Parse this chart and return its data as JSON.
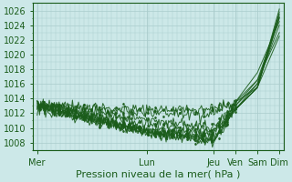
{
  "xlabel": "Pression niveau de la mer( hPa )",
  "bg_color": "#cce8e8",
  "grid_color": "#aacccc",
  "line_color": "#1a5c1a",
  "ylim": [
    1007,
    1027
  ],
  "yticks": [
    1008,
    1010,
    1012,
    1014,
    1016,
    1018,
    1020,
    1022,
    1024,
    1026
  ],
  "day_labels": [
    "Mer",
    "Lun",
    "Jeu",
    "Ven",
    "Sam",
    "Dim"
  ],
  "day_positions": [
    0,
    5,
    8,
    9,
    10,
    11
  ],
  "xlabel_fontsize": 8,
  "tick_fontsize": 7,
  "series": [
    {
      "ctrl_x": [
        0,
        5,
        8,
        9,
        10,
        11
      ],
      "ctrl_y": [
        1013,
        1009.5,
        1008.2,
        1012.5,
        1015.5,
        1026.2
      ]
    },
    {
      "ctrl_x": [
        0,
        5,
        8,
        9,
        10,
        11
      ],
      "ctrl_y": [
        1013,
        1009.5,
        1008.2,
        1012.5,
        1015.5,
        1025.8
      ]
    },
    {
      "ctrl_x": [
        0,
        5,
        8,
        9,
        10,
        11
      ],
      "ctrl_y": [
        1013,
        1009.5,
        1008.2,
        1012.5,
        1016.0,
        1025.5
      ]
    },
    {
      "ctrl_x": [
        0,
        5,
        8,
        9,
        10,
        11
      ],
      "ctrl_y": [
        1013,
        1009.5,
        1008.5,
        1013.0,
        1016.5,
        1025.0
      ]
    },
    {
      "ctrl_x": [
        0,
        5,
        8,
        9,
        10,
        11
      ],
      "ctrl_y": [
        1013,
        1009.5,
        1009.0,
        1013.5,
        1017.5,
        1024.5
      ]
    },
    {
      "ctrl_x": [
        0,
        5,
        8,
        9,
        10,
        11
      ],
      "ctrl_y": [
        1013,
        1009.5,
        1009.5,
        1012.5,
        1015.5,
        1025.0
      ]
    },
    {
      "ctrl_x": [
        0,
        5,
        8,
        9,
        10,
        11
      ],
      "ctrl_y": [
        1013.2,
        1010.5,
        1009.5,
        1012.5,
        1015.5,
        1025.2
      ]
    },
    {
      "ctrl_x": [
        0,
        5,
        8,
        9,
        10,
        11
      ],
      "ctrl_y": [
        1013.2,
        1011.0,
        1010.0,
        1013.0,
        1016.0,
        1024.0
      ]
    },
    {
      "ctrl_x": [
        0,
        5,
        8,
        9,
        10,
        11
      ],
      "ctrl_y": [
        1013.2,
        1012.0,
        1012.0,
        1013.5,
        1016.5,
        1023.0
      ]
    },
    {
      "ctrl_x": [
        0,
        5,
        8,
        9,
        10,
        11
      ],
      "ctrl_y": [
        1013.2,
        1012.5,
        1012.5,
        1013.5,
        1015.5,
        1022.5
      ]
    }
  ],
  "noisy_segment": [
    0,
    9
  ],
  "noise_scale": 0.4
}
